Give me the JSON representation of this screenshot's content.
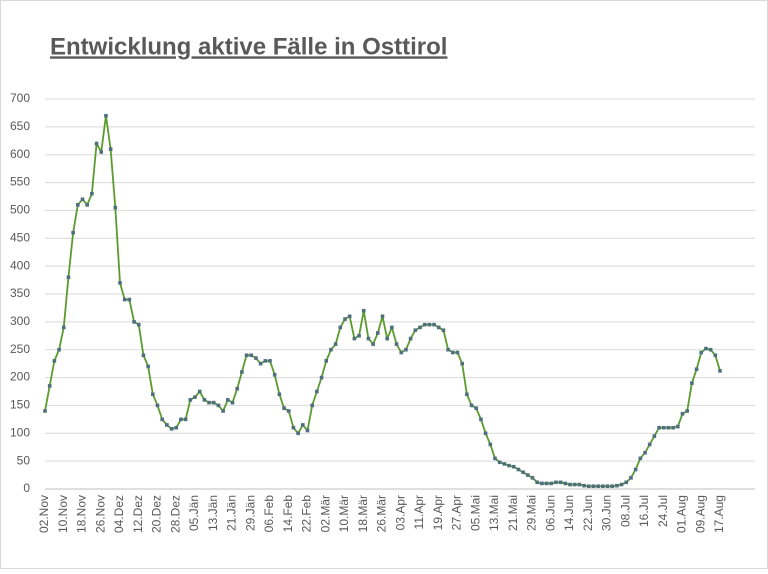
{
  "chart_data": {
    "type": "line",
    "title": "Entwicklung aktive Fälle in Osttirol",
    "categories": [
      "02.Nov",
      null,
      null,
      null,
      "10.Nov",
      null,
      null,
      null,
      "18.Nov",
      null,
      null,
      null,
      "26.Nov",
      null,
      null,
      null,
      "04.Dez",
      null,
      null,
      null,
      "12.Dez",
      null,
      null,
      null,
      "20.Dez",
      null,
      null,
      null,
      "28.Dez",
      null,
      null,
      null,
      "05.Jän",
      null,
      null,
      null,
      "13.Jän",
      null,
      null,
      null,
      "21.Jän",
      null,
      null,
      null,
      "29.Jän",
      null,
      null,
      null,
      "06.Feb",
      null,
      null,
      null,
      "14.Feb",
      null,
      null,
      null,
      "22.Feb",
      null,
      null,
      null,
      "02.Mär",
      null,
      null,
      null,
      "10.Mär",
      null,
      null,
      null,
      "18.Mär",
      null,
      null,
      null,
      "26.Mär",
      null,
      null,
      null,
      "03.Apr",
      null,
      null,
      null,
      "11.Apr",
      null,
      null,
      null,
      "19.Apr",
      null,
      null,
      null,
      "27.Apr",
      null,
      null,
      null,
      "05.Mai",
      null,
      null,
      null,
      "13.Mai",
      null,
      null,
      null,
      "21.Mai",
      null,
      null,
      null,
      "29.Mai",
      null,
      null,
      null,
      "06.Jun",
      null,
      null,
      null,
      "14.Jun",
      null,
      null,
      null,
      "22.Jun",
      null,
      null,
      null,
      "30.Jun",
      null,
      null,
      null,
      "08.Jul",
      null,
      null,
      null,
      "16.Jul",
      null,
      null,
      null,
      "24.Jul",
      null,
      null,
      null,
      "01.Aug",
      null,
      null,
      null,
      "09.Aug",
      null,
      null,
      null,
      "17.Aug"
    ],
    "values": [
      140,
      185,
      230,
      250,
      290,
      380,
      460,
      510,
      520,
      510,
      530,
      620,
      605,
      670,
      610,
      505,
      370,
      340,
      340,
      300,
      295,
      240,
      220,
      170,
      150,
      125,
      115,
      108,
      110,
      125,
      125,
      160,
      165,
      175,
      160,
      155,
      155,
      150,
      140,
      160,
      155,
      180,
      210,
      240,
      240,
      235,
      225,
      230,
      230,
      205,
      170,
      145,
      140,
      110,
      100,
      115,
      105,
      150,
      175,
      200,
      230,
      250,
      260,
      290,
      305,
      310,
      270,
      275,
      320,
      270,
      260,
      280,
      310,
      270,
      290,
      260,
      245,
      250,
      270,
      285,
      290,
      295,
      295,
      295,
      290,
      285,
      250,
      245,
      245,
      225,
      170,
      150,
      145,
      125,
      100,
      80,
      55,
      48,
      45,
      42,
      40,
      35,
      30,
      25,
      20,
      12,
      10,
      10,
      10,
      12,
      12,
      10,
      8,
      8,
      8,
      6,
      5,
      5,
      5,
      5,
      5,
      5,
      6,
      8,
      12,
      20,
      35,
      55,
      65,
      80,
      95,
      110,
      110,
      110,
      110,
      112,
      135,
      140,
      190,
      215,
      245,
      252,
      250,
      240,
      212
    ],
    "color": "#5b9b2e",
    "marker_color": "#4f6f7f",
    "ylim": [
      0,
      700
    ],
    "yticks": [
      0,
      50,
      100,
      150,
      200,
      250,
      300,
      350,
      400,
      450,
      500,
      550,
      600,
      650,
      700
    ],
    "grid": true
  }
}
